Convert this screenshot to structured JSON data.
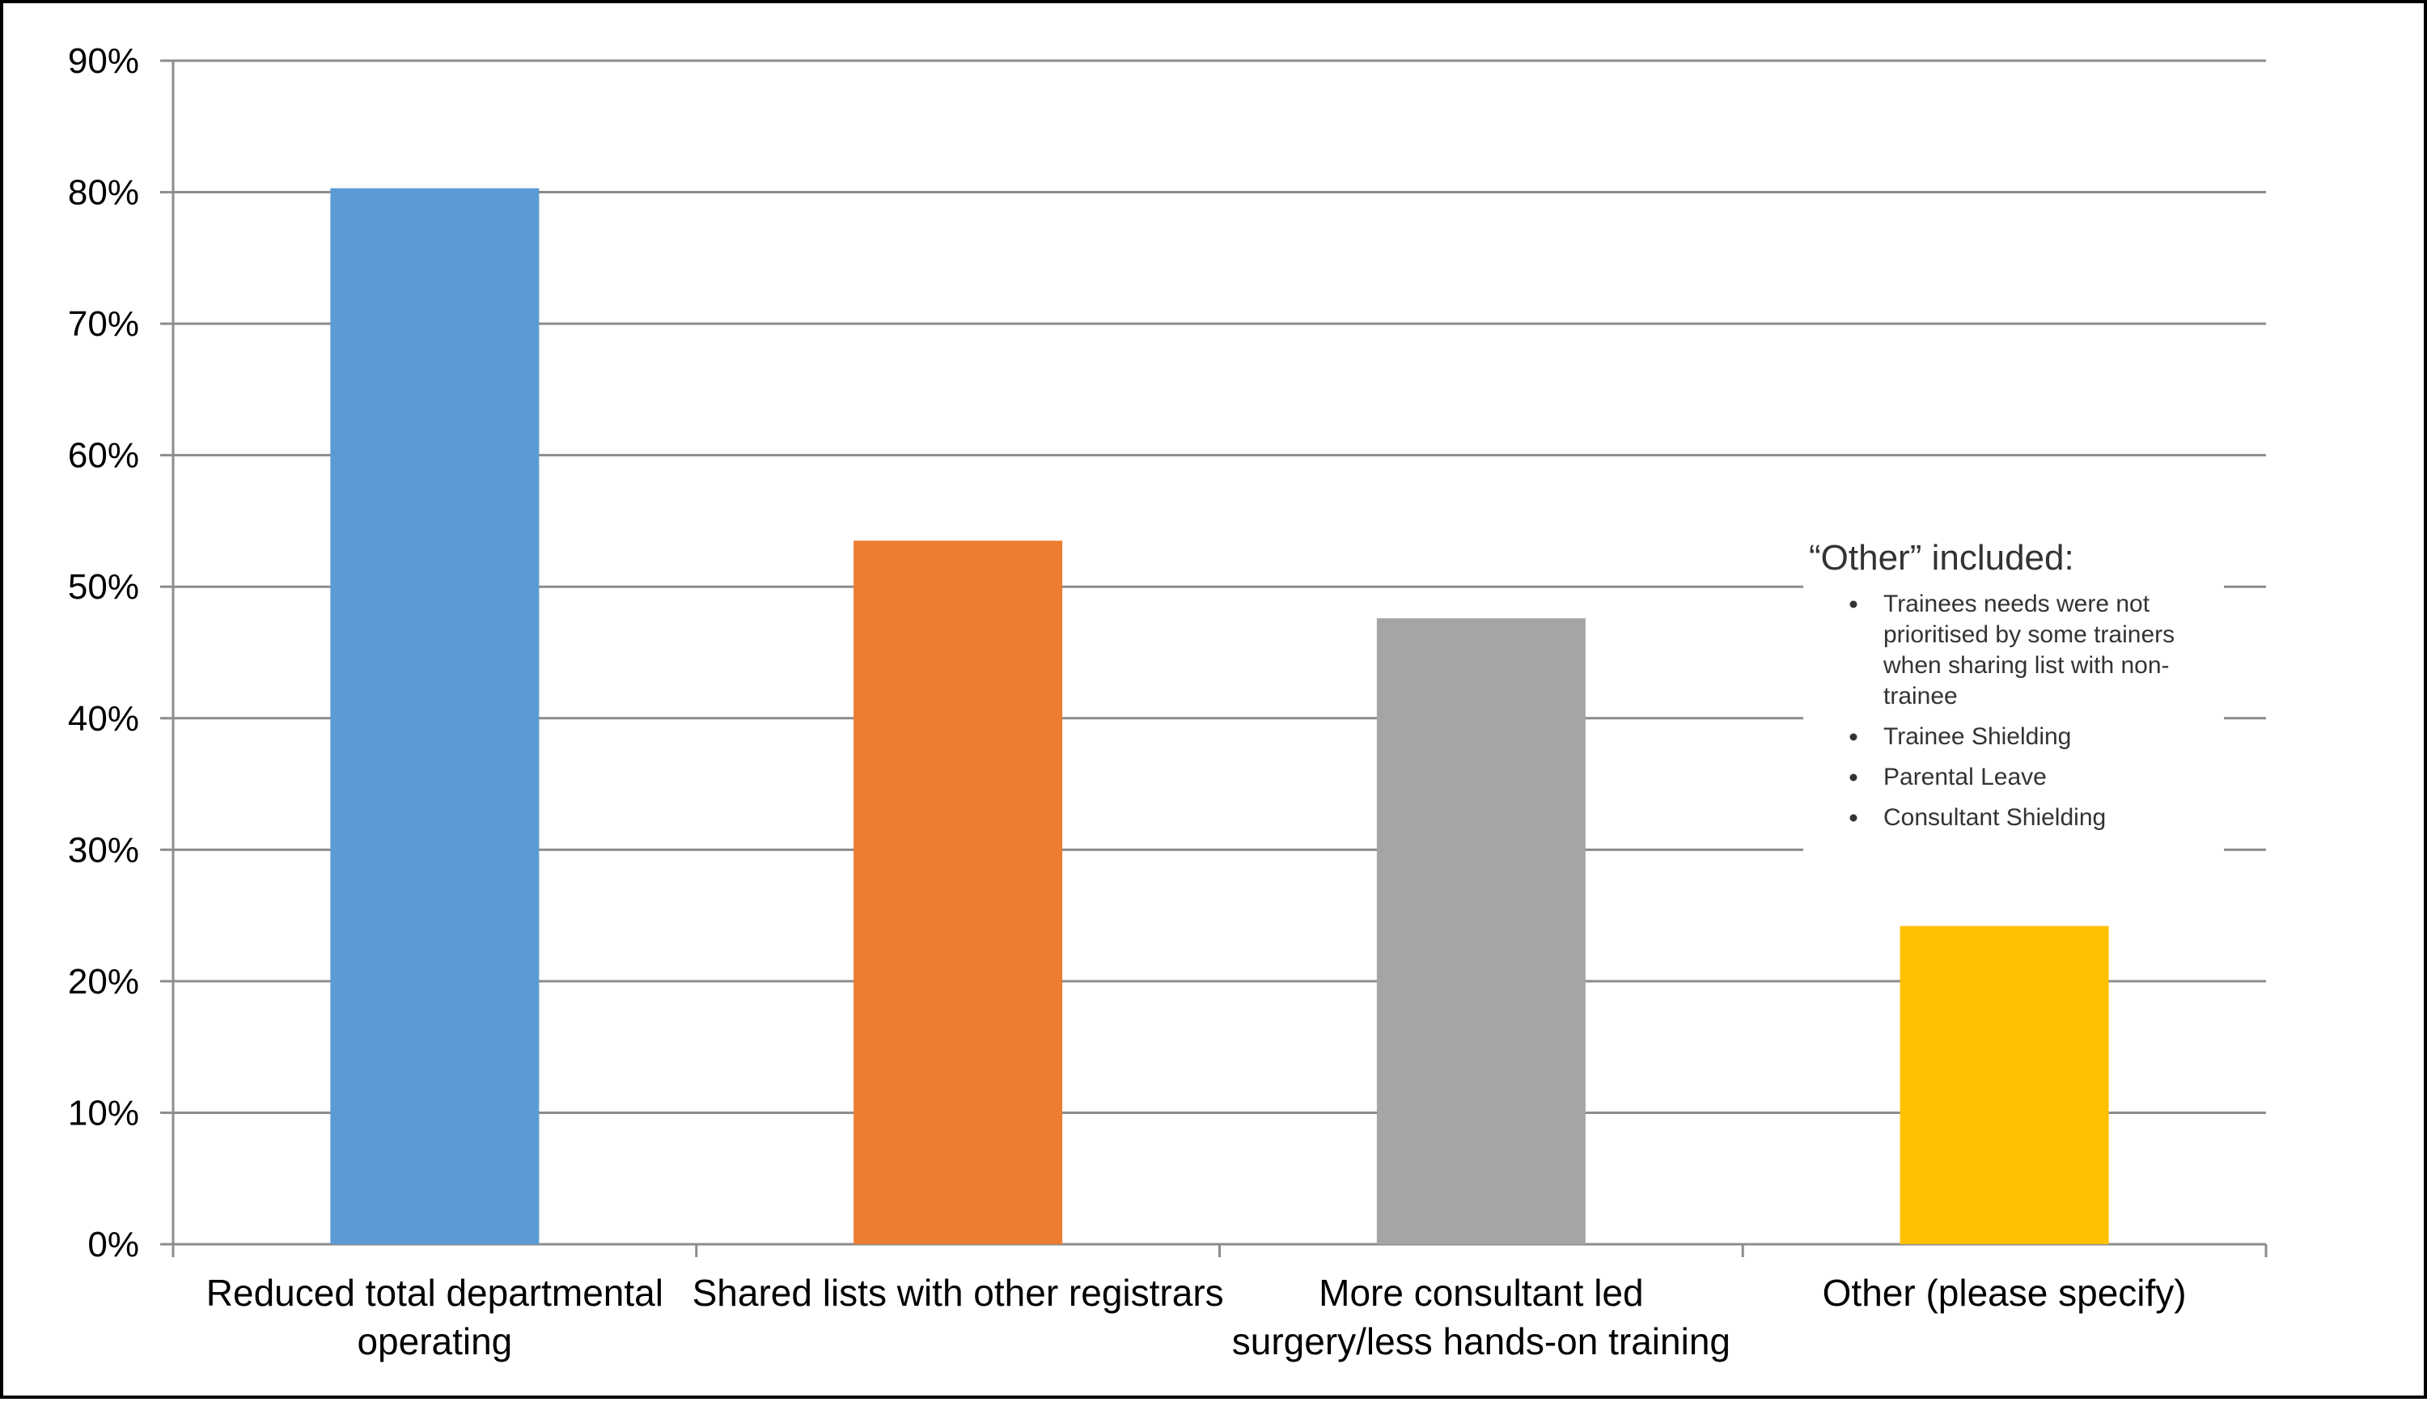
{
  "chart_data": {
    "type": "bar",
    "title": "",
    "xlabel": "",
    "ylabel": "",
    "ylim": [
      0,
      0.9
    ],
    "grid": true,
    "y_tick_labels": [
      "0%",
      "10%",
      "20%",
      "30%",
      "40%",
      "50%",
      "60%",
      "70%",
      "80%",
      "90%"
    ],
    "categories": [
      [
        "Reduced total departmental",
        "operating"
      ],
      [
        "Shared lists with other registrars"
      ],
      [
        "More consultant led",
        "surgery/less hands-on training"
      ],
      [
        "Other (please specify)"
      ]
    ],
    "values": [
      0.803,
      0.535,
      0.476,
      0.242
    ],
    "colors": [
      "#5b9bd5",
      "#ed7d31",
      "#a5a5a5",
      "#ffc000"
    ],
    "annotation": {
      "title": "“Other” included:",
      "items": [
        [
          "Trainees needs were not",
          "prioritised by some trainers",
          "when sharing list with non-",
          "trainee"
        ],
        [
          "Trainee Shielding"
        ],
        [
          "Parental Leave"
        ],
        [
          "Consultant Shielding"
        ]
      ]
    }
  }
}
